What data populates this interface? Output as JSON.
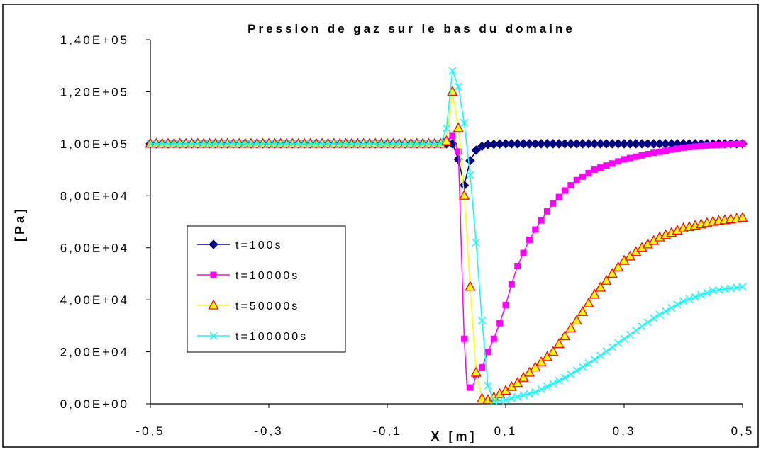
{
  "chart_data": {
    "type": "line",
    "title": "Pression de gaz sur le bas du domaine",
    "xlabel": "X [m]",
    "ylabel": "[Pa]",
    "xlim": [
      -0.5,
      0.5
    ],
    "ylim": [
      0,
      140000
    ],
    "x_ticks": [
      "-0,5",
      "-0,3",
      "-0,1",
      "0,1",
      "0,3",
      "0,5"
    ],
    "y_ticks": [
      "0,00E+00",
      "2,00E+04",
      "4,00E+04",
      "6,00E+04",
      "8,00E+04",
      "1,00E+05",
      "1,20E+05",
      "1,40E+05"
    ],
    "grid": false,
    "legend_position": "left-middle",
    "series": [
      {
        "name": "t=100s",
        "color": "#000080",
        "marker": "diamond",
        "points": [
          [
            -0.5,
            100000
          ],
          [
            -0.4,
            100000
          ],
          [
            -0.3,
            100000
          ],
          [
            -0.2,
            100000
          ],
          [
            -0.1,
            100000
          ],
          [
            0.0,
            100000
          ],
          [
            0.01,
            100000
          ],
          [
            0.02,
            94000
          ],
          [
            0.03,
            84000
          ],
          [
            0.04,
            93500
          ],
          [
            0.05,
            97500
          ],
          [
            0.06,
            99000
          ],
          [
            0.07,
            99700
          ],
          [
            0.1,
            100000
          ],
          [
            0.2,
            100000
          ],
          [
            0.3,
            100000
          ],
          [
            0.4,
            100000
          ],
          [
            0.5,
            100000
          ]
        ]
      },
      {
        "name": "t=10000s",
        "color": "#FF00FF",
        "marker": "square",
        "points": [
          [
            -0.5,
            100000
          ],
          [
            -0.1,
            100000
          ],
          [
            -0.01,
            100000
          ],
          [
            0.0,
            101000
          ],
          [
            0.01,
            103000
          ],
          [
            0.02,
            97000
          ],
          [
            0.03,
            25000
          ],
          [
            0.035,
            5500
          ],
          [
            0.045,
            7000
          ],
          [
            0.05,
            11000
          ],
          [
            0.06,
            14000
          ],
          [
            0.07,
            20000
          ],
          [
            0.08,
            25000
          ],
          [
            0.09,
            31000
          ],
          [
            0.1,
            38000
          ],
          [
            0.11,
            46000
          ],
          [
            0.12,
            53000
          ],
          [
            0.13,
            58000
          ],
          [
            0.14,
            63000
          ],
          [
            0.15,
            67000
          ],
          [
            0.16,
            70500
          ],
          [
            0.17,
            74000
          ],
          [
            0.18,
            77000
          ],
          [
            0.19,
            79500
          ],
          [
            0.2,
            82000
          ],
          [
            0.22,
            86000
          ],
          [
            0.25,
            90000
          ],
          [
            0.3,
            94000
          ],
          [
            0.35,
            96500
          ],
          [
            0.4,
            98500
          ],
          [
            0.45,
            99500
          ],
          [
            0.5,
            100000
          ]
        ]
      },
      {
        "name": "t=50000s",
        "color": "#FFFF00",
        "edge": "#FF0000",
        "marker": "triangle",
        "points": [
          [
            -0.5,
            100000
          ],
          [
            -0.1,
            100000
          ],
          [
            -0.01,
            100000
          ],
          [
            0.0,
            101000
          ],
          [
            0.01,
            120000
          ],
          [
            0.02,
            106000
          ],
          [
            0.03,
            80000
          ],
          [
            0.04,
            45000
          ],
          [
            0.05,
            12000
          ],
          [
            0.06,
            2000
          ],
          [
            0.07,
            1500
          ],
          [
            0.08,
            2500
          ],
          [
            0.1,
            5000
          ],
          [
            0.12,
            8000
          ],
          [
            0.15,
            14000
          ],
          [
            0.18,
            20000
          ],
          [
            0.2,
            26000
          ],
          [
            0.22,
            32000
          ],
          [
            0.25,
            42000
          ],
          [
            0.28,
            50000
          ],
          [
            0.3,
            55000
          ],
          [
            0.33,
            60000
          ],
          [
            0.36,
            64000
          ],
          [
            0.4,
            67500
          ],
          [
            0.45,
            70000
          ],
          [
            0.5,
            71500
          ]
        ]
      },
      {
        "name": "t=100000s",
        "color": "#00FFFF",
        "marker": "x",
        "points": [
          [
            -0.5,
            100000
          ],
          [
            -0.1,
            100000
          ],
          [
            -0.01,
            100000
          ],
          [
            0.0,
            106000
          ],
          [
            0.01,
            128000
          ],
          [
            0.02,
            122000
          ],
          [
            0.03,
            108000
          ],
          [
            0.04,
            88000
          ],
          [
            0.05,
            62000
          ],
          [
            0.06,
            32000
          ],
          [
            0.07,
            7000
          ],
          [
            0.08,
            1000
          ],
          [
            0.1,
            1500
          ],
          [
            0.15,
            4500
          ],
          [
            0.2,
            10000
          ],
          [
            0.25,
            17000
          ],
          [
            0.3,
            25000
          ],
          [
            0.35,
            33000
          ],
          [
            0.4,
            39500
          ],
          [
            0.45,
            43500
          ],
          [
            0.5,
            45000
          ]
        ]
      }
    ]
  }
}
